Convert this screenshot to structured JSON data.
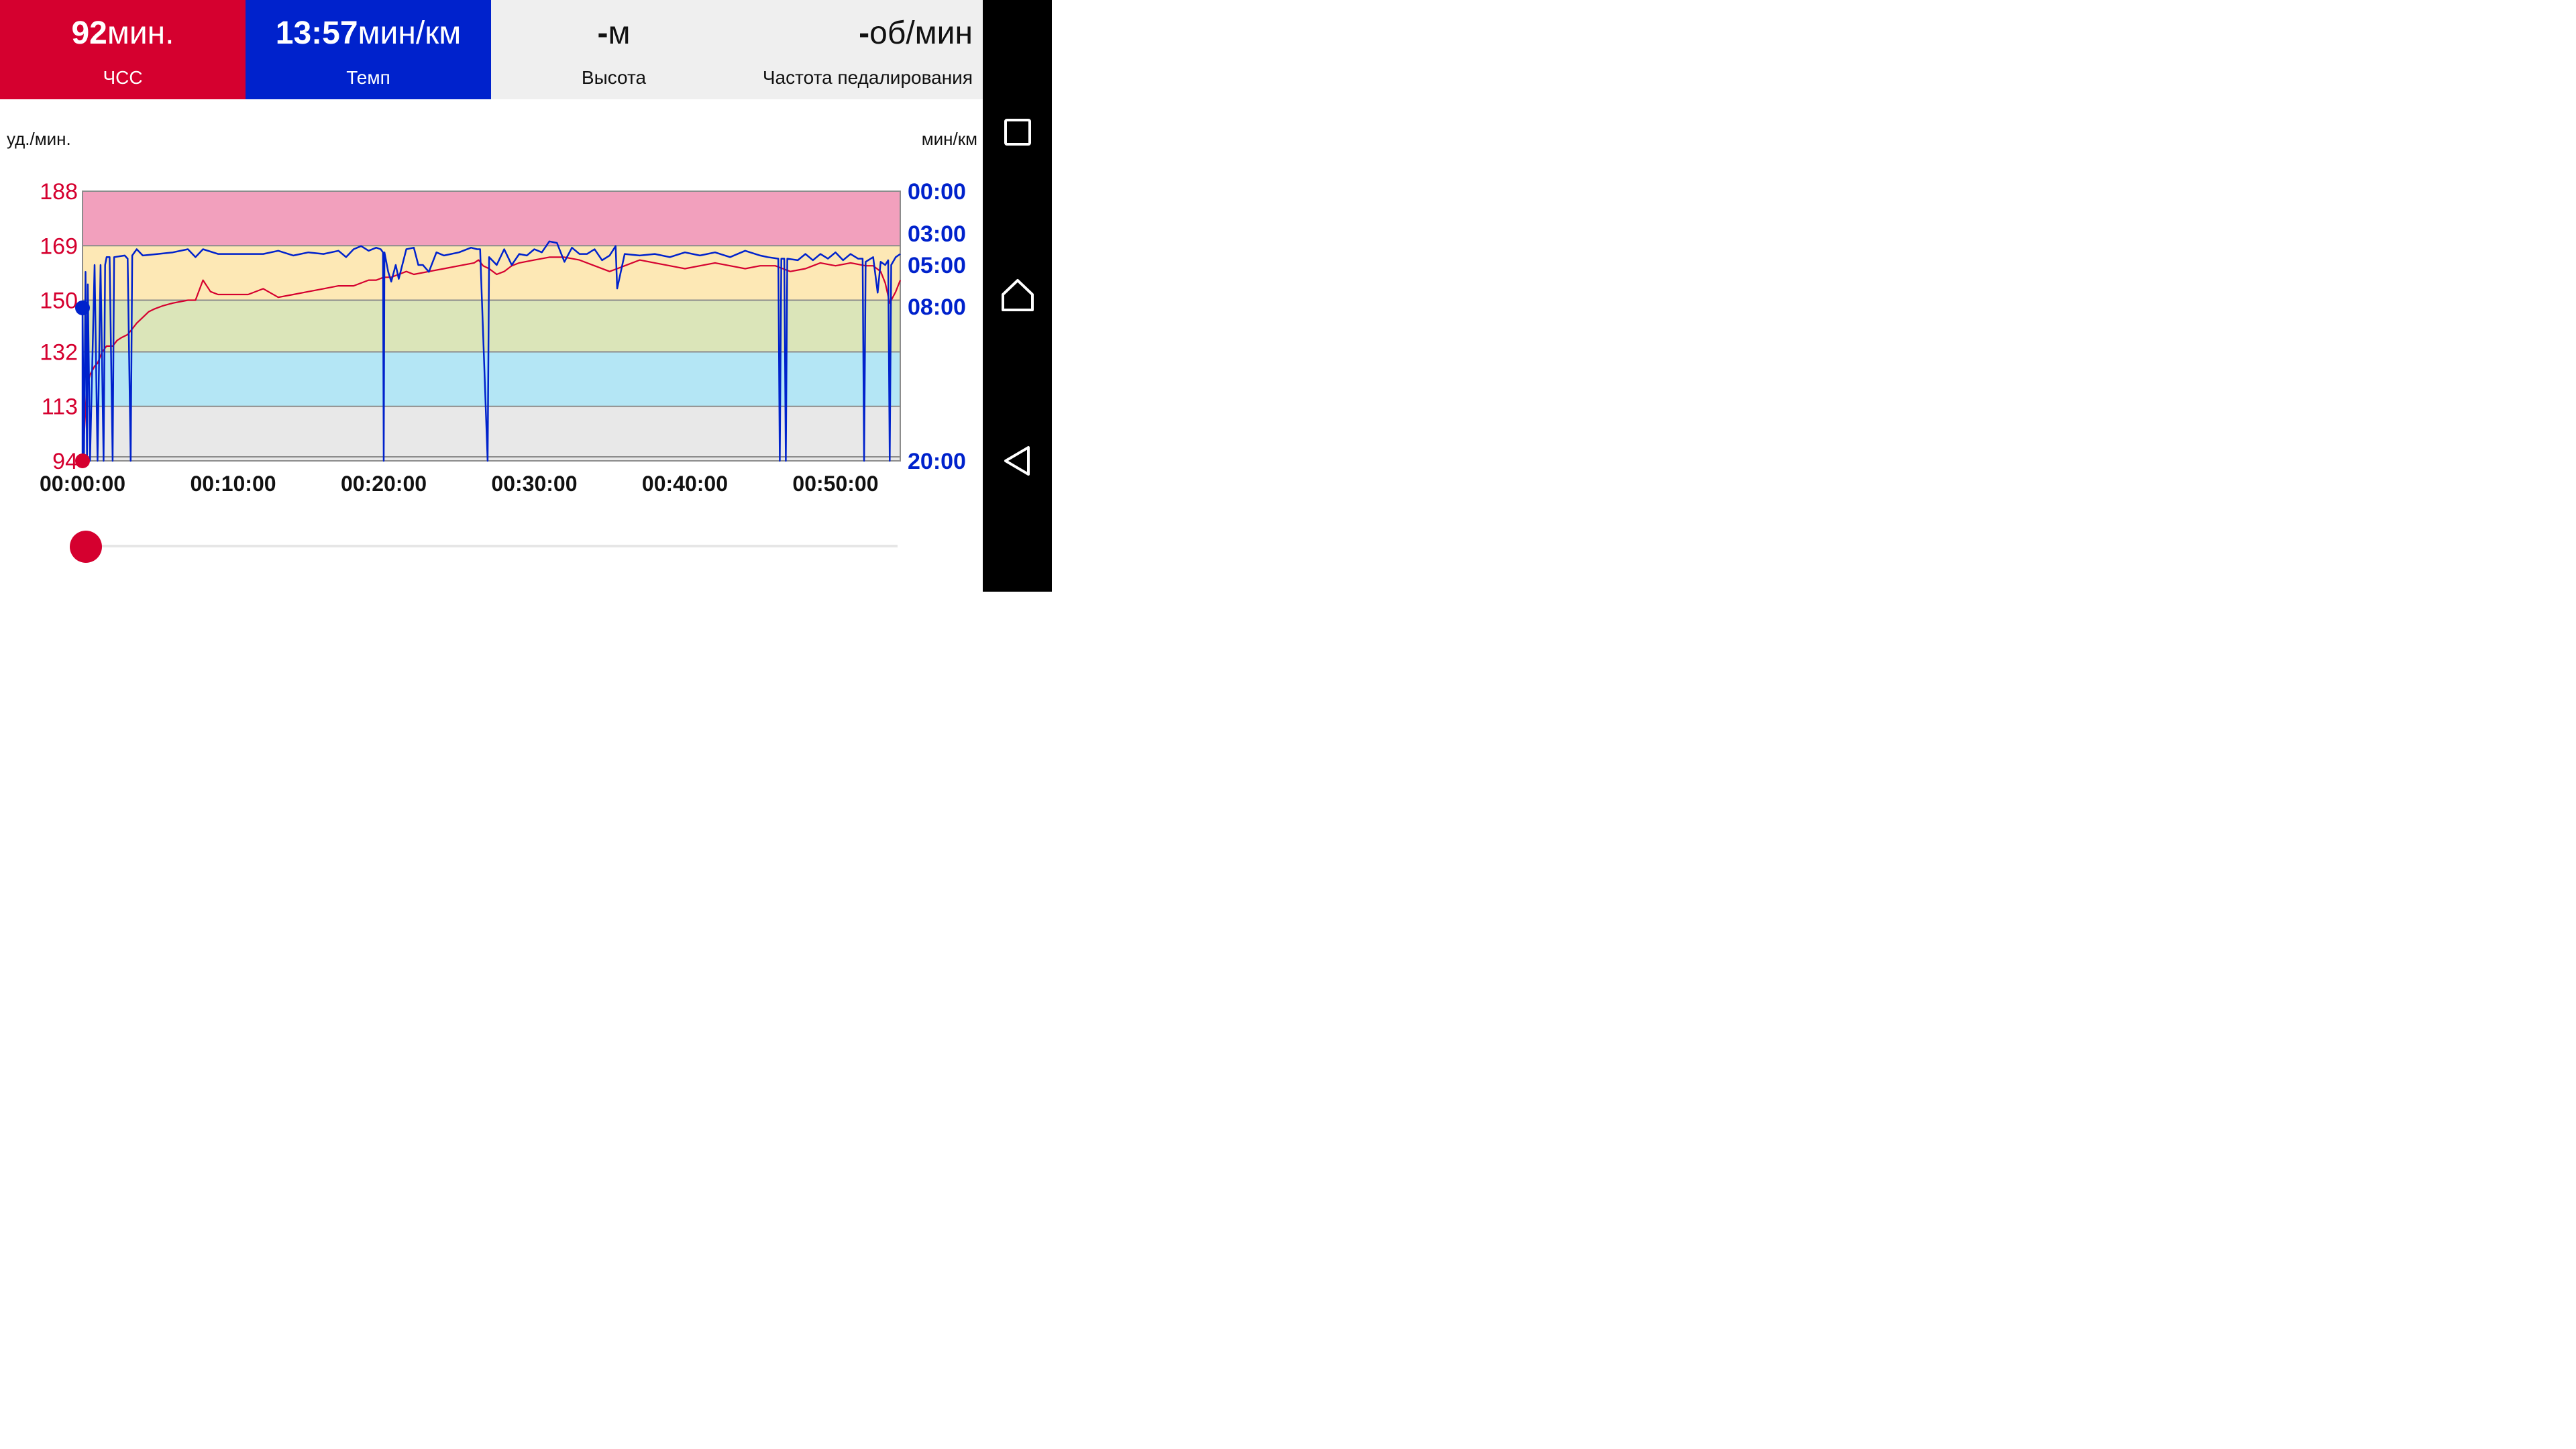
{
  "stats": {
    "heart_rate": {
      "value": "92",
      "unit": "мин.",
      "label": "ЧСС",
      "color": "#d5002f"
    },
    "pace": {
      "value": "13:57",
      "unit": "мин/км",
      "label": "Темп",
      "color": "#0022cc"
    },
    "altitude": {
      "value": "-",
      "unit": "м",
      "label": "Высота"
    },
    "cadence": {
      "value": "-",
      "unit": "об/мин",
      "label": "Частота педалирования"
    }
  },
  "chart_data": {
    "type": "line",
    "left_axis": {
      "label": "уд./мин.",
      "ticks": [
        "188",
        "169",
        "150",
        "132",
        "113",
        "94"
      ],
      "range": [
        94,
        188
      ],
      "color": "#d5002f"
    },
    "right_axis": {
      "label": "мин/км",
      "ticks": [
        "00:00",
        "03:00",
        "05:00",
        "08:00",
        "20:00"
      ],
      "color": "#0022cc"
    },
    "x_axis": {
      "ticks": [
        "00:00:00",
        "00:10:00",
        "00:20:00",
        "00:30:00",
        "00:40:00",
        "00:50:00"
      ],
      "range_min": [
        0,
        54.3
      ]
    },
    "zones": [
      {
        "from": 169,
        "to": 188,
        "color": "#f2a0bd"
      },
      {
        "from": 150,
        "to": 169,
        "color": "#fde8b5"
      },
      {
        "from": 132,
        "to": 150,
        "color": "#dbe5b9"
      },
      {
        "from": 113,
        "to": 132,
        "color": "#b4e6f5"
      },
      {
        "from": 94,
        "to": 113,
        "color": "#e8e8e8"
      }
    ],
    "series": [
      {
        "axis": "left",
        "color": "#d5002f",
        "x": [
          0,
          0.1,
          0.2,
          0.3,
          0.5,
          0.8,
          1.0,
          1.3,
          1.6,
          2.0,
          2.3,
          2.6,
          3.0,
          3.3,
          3.6,
          4.0,
          4.4,
          4.8,
          5.3,
          6.0,
          7.0,
          7.5,
          8.0,
          8.5,
          9.0,
          10.0,
          11.0,
          12.0,
          13.0,
          14.0,
          15.0,
          16.0,
          17.0,
          18.0,
          18.5,
          19.0,
          19.5,
          20.0,
          20.5,
          21.0,
          21.5,
          22.0,
          23.0,
          24.0,
          25.0,
          26.0,
          26.3,
          26.6,
          27.0,
          27.5,
          28.0,
          28.5,
          29.0,
          30.0,
          31.0,
          32.0,
          33.0,
          34.0,
          35.0,
          35.5,
          36.0,
          37.0,
          38.0,
          39.0,
          40.0,
          41.0,
          42.0,
          43.0,
          44.0,
          45.0,
          46.0,
          46.5,
          47.0,
          48.0,
          48.5,
          49.0,
          50.0,
          51.0,
          52.0,
          52.5,
          53.0,
          53.3,
          53.6,
          54.0,
          54.3
        ],
        "y": [
          94,
          102,
          112,
          120,
          124,
          127,
          128,
          132,
          134,
          134,
          136,
          137,
          138,
          140,
          142,
          144,
          146,
          147,
          148,
          149,
          150,
          150,
          157,
          153,
          152,
          152,
          152,
          154,
          151,
          152,
          153,
          154,
          155,
          155,
          156,
          157,
          157,
          158,
          158,
          159,
          160,
          159,
          160,
          161,
          162,
          163,
          164,
          162,
          161,
          159,
          160,
          162,
          163,
          164,
          165,
          165,
          164,
          162,
          160,
          161,
          162,
          164,
          163,
          162,
          161,
          162,
          163,
          162,
          161,
          162,
          162,
          161,
          160,
          161,
          162,
          163,
          162,
          163,
          162,
          162,
          160,
          156,
          149,
          153,
          157
        ]
      },
      {
        "axis": "right",
        "color": "#0022cc",
        "points": [
          [
            0.0,
            20.0
          ],
          [
            0.0,
            8.1
          ],
          [
            0.1,
            20.0
          ],
          [
            0.2,
            5.5
          ],
          [
            0.3,
            20.0
          ],
          [
            0.35,
            6.4
          ],
          [
            0.5,
            20.0
          ],
          [
            0.8,
            5.0
          ],
          [
            1.0,
            20.0
          ],
          [
            1.2,
            5.0
          ],
          [
            1.4,
            20.0
          ],
          [
            1.5,
            5.0
          ],
          [
            1.6,
            4.5
          ],
          [
            1.8,
            4.5
          ],
          [
            2.0,
            20.0
          ],
          [
            2.1,
            4.5
          ],
          [
            2.8,
            4.4
          ],
          [
            3.0,
            4.6
          ],
          [
            3.2,
            20.0
          ],
          [
            3.3,
            4.4
          ],
          [
            3.6,
            4.0
          ],
          [
            4.0,
            4.4
          ],
          [
            5.0,
            4.3
          ],
          [
            6.0,
            4.2
          ],
          [
            7.0,
            4.0
          ],
          [
            7.5,
            4.5
          ],
          [
            8.0,
            4.0
          ],
          [
            9.0,
            4.3
          ],
          [
            10.0,
            4.3
          ],
          [
            12.0,
            4.3
          ],
          [
            13.0,
            4.1
          ],
          [
            14.0,
            4.4
          ],
          [
            15.0,
            4.2
          ],
          [
            16.0,
            4.3
          ],
          [
            17.0,
            4.1
          ],
          [
            17.5,
            4.5
          ],
          [
            18.0,
            4.0
          ],
          [
            18.5,
            3.8
          ],
          [
            19.0,
            4.1
          ],
          [
            19.5,
            3.9
          ],
          [
            19.8,
            4.0
          ],
          [
            19.95,
            4.2
          ],
          [
            20.0,
            20.0
          ],
          [
            20.05,
            4.2
          ],
          [
            20.3,
            5.5
          ],
          [
            20.5,
            6.2
          ],
          [
            20.8,
            5.0
          ],
          [
            21.0,
            6.0
          ],
          [
            21.5,
            4.0
          ],
          [
            22.0,
            3.9
          ],
          [
            22.3,
            5.0
          ],
          [
            22.6,
            5.0
          ],
          [
            23.0,
            5.5
          ],
          [
            23.5,
            4.2
          ],
          [
            24.0,
            4.4
          ],
          [
            25.0,
            4.2
          ],
          [
            25.8,
            3.9
          ],
          [
            26.2,
            4.0
          ],
          [
            26.4,
            4.0
          ],
          [
            26.9,
            20.0
          ],
          [
            27.0,
            4.5
          ],
          [
            27.5,
            5.0
          ],
          [
            28.0,
            4.0
          ],
          [
            28.5,
            5.0
          ],
          [
            29.0,
            4.3
          ],
          [
            29.5,
            4.4
          ],
          [
            30.0,
            4.0
          ],
          [
            30.5,
            4.2
          ],
          [
            31.0,
            3.5
          ],
          [
            31.5,
            3.6
          ],
          [
            32.0,
            4.8
          ],
          [
            32.5,
            3.9
          ],
          [
            33.0,
            4.3
          ],
          [
            33.5,
            4.3
          ],
          [
            34.0,
            4.0
          ],
          [
            34.5,
            4.7
          ],
          [
            35.0,
            4.4
          ],
          [
            35.4,
            3.8
          ],
          [
            35.5,
            6.7
          ],
          [
            36.0,
            4.3
          ],
          [
            37.0,
            4.4
          ],
          [
            38.0,
            4.3
          ],
          [
            39.0,
            4.5
          ],
          [
            40.0,
            4.2
          ],
          [
            41.0,
            4.4
          ],
          [
            42.0,
            4.2
          ],
          [
            43.0,
            4.5
          ],
          [
            44.0,
            4.1
          ],
          [
            45.0,
            4.4
          ],
          [
            45.5,
            4.5
          ],
          [
            46.2,
            4.6
          ],
          [
            46.3,
            20.0
          ],
          [
            46.4,
            4.6
          ],
          [
            46.6,
            4.6
          ],
          [
            46.7,
            20.0
          ],
          [
            46.8,
            4.6
          ],
          [
            47.5,
            4.7
          ],
          [
            48.0,
            4.3
          ],
          [
            48.5,
            4.7
          ],
          [
            49.0,
            4.3
          ],
          [
            49.5,
            4.6
          ],
          [
            50.0,
            4.2
          ],
          [
            50.5,
            4.7
          ],
          [
            51.0,
            4.3
          ],
          [
            51.5,
            4.6
          ],
          [
            51.8,
            4.6
          ],
          [
            51.9,
            20.0
          ],
          [
            52.0,
            4.8
          ],
          [
            52.5,
            4.5
          ],
          [
            52.8,
            7.0
          ],
          [
            53.0,
            4.8
          ],
          [
            53.3,
            5.0
          ],
          [
            53.5,
            4.7
          ],
          [
            53.6,
            20.0
          ],
          [
            53.7,
            5.0
          ],
          [
            54.0,
            4.5
          ],
          [
            54.3,
            4.3
          ]
        ]
      }
    ]
  },
  "markers": {
    "pace_marker_color": "#0022cc",
    "hr_marker_color": "#d5002f"
  },
  "slider": {
    "position": 0,
    "color": "#d5002f"
  },
  "navbar": {
    "icons": [
      "recents-icon",
      "home-icon",
      "back-icon"
    ]
  }
}
